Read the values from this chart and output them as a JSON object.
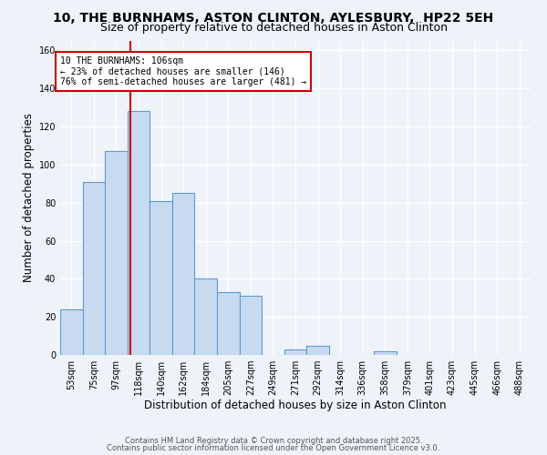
{
  "title": "10, THE BURNHAMS, ASTON CLINTON, AYLESBURY,  HP22 5EH",
  "subtitle": "Size of property relative to detached houses in Aston Clinton",
  "xlabel": "Distribution of detached houses by size in Aston Clinton",
  "ylabel": "Number of detached properties",
  "bar_labels": [
    "53sqm",
    "75sqm",
    "97sqm",
    "118sqm",
    "140sqm",
    "162sqm",
    "184sqm",
    "205sqm",
    "227sqm",
    "249sqm",
    "271sqm",
    "292sqm",
    "314sqm",
    "336sqm",
    "358sqm",
    "379sqm",
    "401sqm",
    "423sqm",
    "445sqm",
    "466sqm",
    "488sqm"
  ],
  "bar_values": [
    24,
    91,
    107,
    128,
    81,
    85,
    40,
    33,
    31,
    0,
    3,
    5,
    0,
    0,
    2,
    0,
    0,
    0,
    0,
    0,
    0
  ],
  "bar_color": "#c8daf0",
  "bar_edge_color": "#5b9bd5",
  "vline_color": "#cc0000",
  "annotation_text": "10 THE BURNHAMS: 106sqm\n← 23% of detached houses are smaller (146)\n76% of semi-detached houses are larger (481) →",
  "annotation_box_color": "#ffffff",
  "annotation_box_edge": "#cc0000",
  "ylim": [
    0,
    165
  ],
  "yticks": [
    0,
    20,
    40,
    60,
    80,
    100,
    120,
    140,
    160
  ],
  "footer1": "Contains HM Land Registry data © Crown copyright and database right 2025.",
  "footer2": "Contains public sector information licensed under the Open Government Licence v3.0.",
  "background_color": "#eef2f9",
  "grid_color": "#ffffff",
  "title_fontsize": 10,
  "subtitle_fontsize": 9,
  "axis_label_fontsize": 8.5,
  "tick_fontsize": 7,
  "annotation_fontsize": 7,
  "footer_fontsize": 6,
  "vline_pos": 2.62
}
